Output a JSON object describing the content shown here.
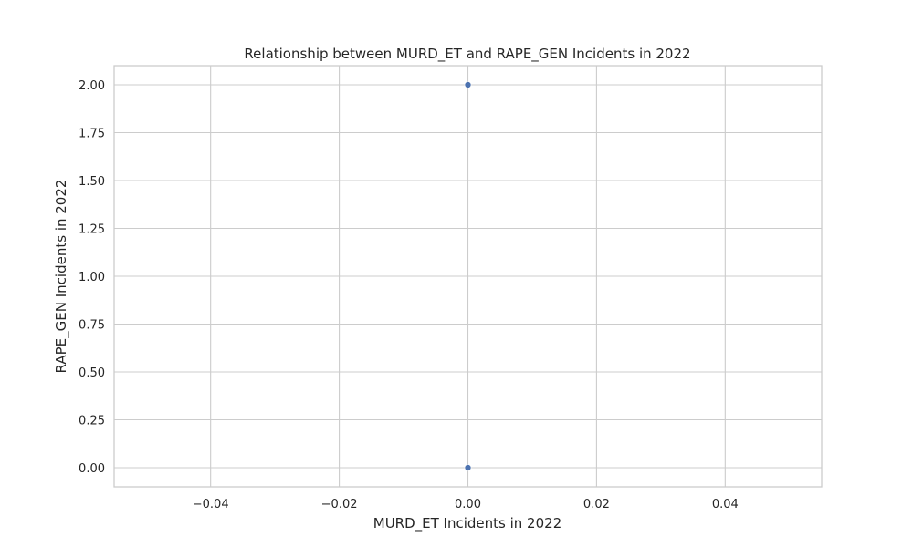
{
  "chart_data": {
    "type": "scatter",
    "title": "Relationship between MURD_ET and RAPE_GEN Incidents in 2022",
    "xlabel": "MURD_ET Incidents in 2022",
    "ylabel": "RAPE_GEN Incidents in 2022",
    "xlim": [
      -0.055,
      0.055
    ],
    "ylim": [
      -0.1,
      2.1
    ],
    "x_ticks": [
      -0.04,
      -0.02,
      0.0,
      0.02,
      0.04
    ],
    "x_tick_labels": [
      "−0.04",
      "−0.02",
      "0.00",
      "0.02",
      "0.04"
    ],
    "y_ticks": [
      0.0,
      0.25,
      0.5,
      0.75,
      1.0,
      1.25,
      1.5,
      1.75,
      2.0
    ],
    "y_tick_labels": [
      "0.00",
      "0.25",
      "0.50",
      "0.75",
      "1.00",
      "1.25",
      "1.50",
      "1.75",
      "2.00"
    ],
    "grid": true,
    "points": [
      {
        "x": 0.0,
        "y": 2.0
      },
      {
        "x": 0.0,
        "y": 0.0
      }
    ],
    "colors": {
      "marker": "#4c72b0",
      "grid": "#cccccc",
      "spine": "#cccccc",
      "text": "#262626"
    }
  }
}
